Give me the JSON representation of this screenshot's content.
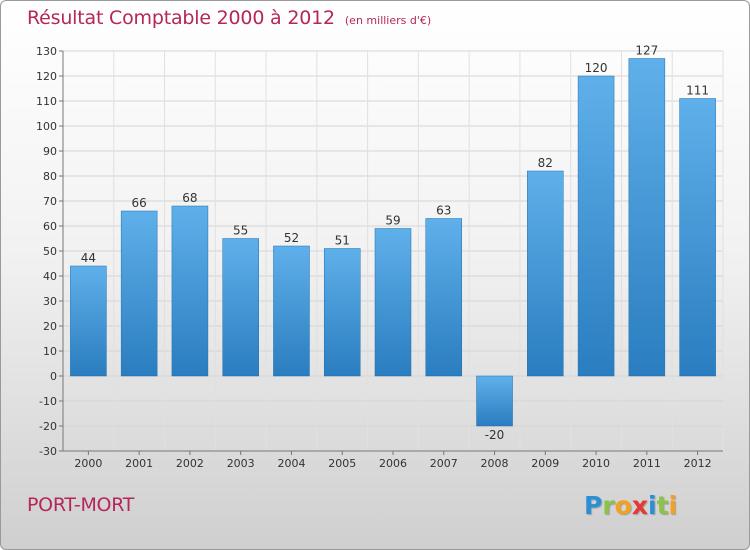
{
  "header": {
    "title": "Résultat Comptable 2000 à 2012",
    "subtitle": "(en milliers d'€)"
  },
  "footer": {
    "commune": "PORT-MORT",
    "brand": "Proxiti",
    "brand_letters": [
      {
        "char": "P",
        "color": "#2a8fd6"
      },
      {
        "char": "r",
        "color": "#8bc34a"
      },
      {
        "char": "o",
        "color": "#f4a21e"
      },
      {
        "char": "x",
        "color": "#e53935"
      },
      {
        "char": "i",
        "color": "#2a8fd6"
      },
      {
        "char": "t",
        "color": "#8bc34a"
      },
      {
        "char": "i",
        "color": "#f4a21e"
      }
    ]
  },
  "colors": {
    "bar_light": "#5fb0ea",
    "bar_dark": "#2a7dbf",
    "title": "#b5265b"
  },
  "chart_data": {
    "type": "bar",
    "title": "Résultat Comptable 2000 à 2012",
    "unit": "(en milliers d'€)",
    "categories": [
      "2000",
      "2001",
      "2002",
      "2003",
      "2004",
      "2005",
      "2006",
      "2007",
      "2008",
      "2009",
      "2010",
      "2011",
      "2012"
    ],
    "values": [
      44,
      66,
      68,
      55,
      52,
      51,
      59,
      63,
      -20,
      82,
      120,
      127,
      111
    ],
    "ylim": [
      -30,
      130
    ],
    "yticks": [
      -30,
      -20,
      -10,
      0,
      10,
      20,
      30,
      40,
      50,
      60,
      70,
      80,
      90,
      100,
      110,
      120,
      130
    ],
    "xlabel": "",
    "ylabel": "",
    "grid": true
  }
}
